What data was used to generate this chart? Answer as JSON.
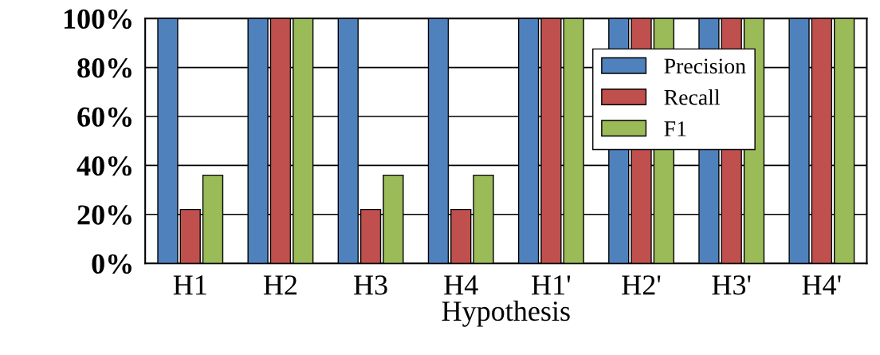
{
  "chart_data": {
    "type": "bar",
    "xlabel": "Hypothesis",
    "categories": [
      "H1",
      "H2",
      "H3",
      "H4",
      "H1'",
      "H2'",
      "H3'",
      "H4'"
    ],
    "series": [
      {
        "name": "Precision",
        "color": "#4f81bd",
        "values": [
          100,
          100,
          100,
          100,
          100,
          100,
          100,
          100
        ]
      },
      {
        "name": "Recall",
        "color": "#c0504d",
        "values": [
          22,
          100,
          22,
          22,
          100,
          100,
          100,
          100
        ]
      },
      {
        "name": "F1",
        "color": "#9bbb59",
        "values": [
          36,
          100,
          36,
          36,
          100,
          100,
          100,
          100
        ]
      }
    ],
    "ylim": [
      0,
      100
    ],
    "yticks": [
      {
        "value": 0,
        "label": "0%"
      },
      {
        "value": 20,
        "label": "20%"
      },
      {
        "value": 40,
        "label": "40%"
      },
      {
        "value": 60,
        "label": "60%"
      },
      {
        "value": 80,
        "label": "80%"
      },
      {
        "value": 100,
        "label": "100%"
      }
    ],
    "grid": "y",
    "legend": "right"
  }
}
